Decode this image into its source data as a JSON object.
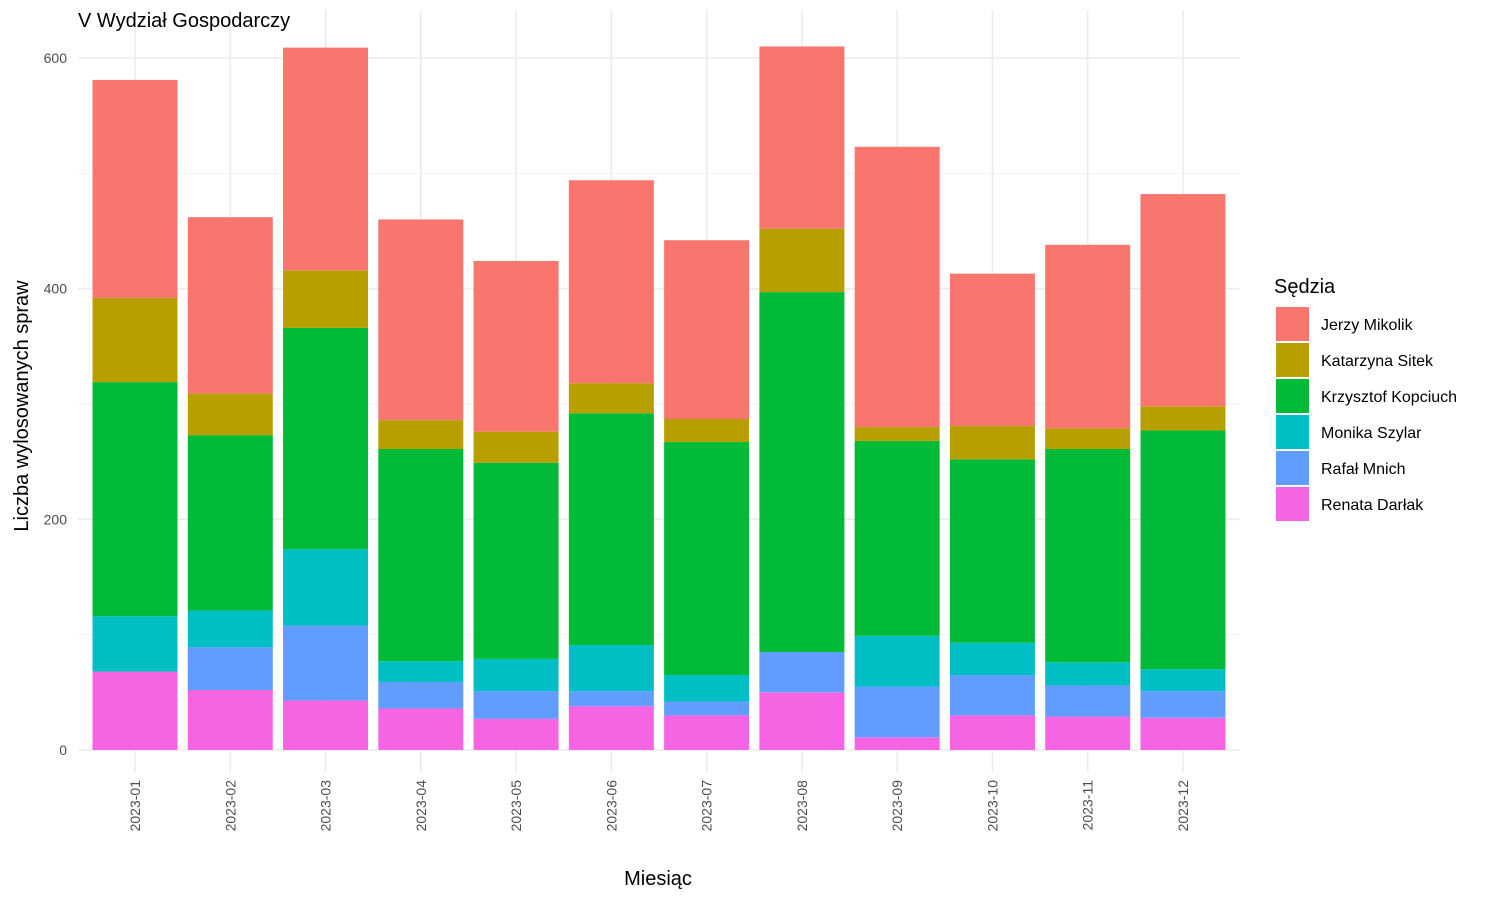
{
  "chart_data": {
    "type": "bar",
    "stacked": true,
    "title": "V Wydział Gospodarczy",
    "xlabel": "Miesiąc",
    "ylabel": "Liczba wylosowanych spraw",
    "ylim": [
      0,
      620
    ],
    "y_ticks": [
      0,
      200,
      400,
      600
    ],
    "grid": true,
    "legend_title": "Sędzia",
    "legend_position": "right",
    "categories": [
      "2023-01",
      "2023-02",
      "2023-03",
      "2023-04",
      "2023-05",
      "2023-06",
      "2023-07",
      "2023-08",
      "2023-09",
      "2023-10",
      "2023-11",
      "2023-12"
    ],
    "series": [
      {
        "name": "Renata Darłak",
        "color": "#F564E3",
        "values": [
          68,
          52,
          43,
          36,
          27,
          38,
          30,
          50,
          11,
          30,
          29,
          28
        ]
      },
      {
        "name": "Rafał Mnich",
        "color": "#619CFF",
        "values": [
          0,
          37,
          65,
          23,
          24,
          13,
          12,
          35,
          44,
          35,
          27,
          23
        ]
      },
      {
        "name": "Monika Szylar",
        "color": "#00BFC4",
        "values": [
          48,
          32,
          66,
          18,
          28,
          40,
          23,
          0,
          44,
          28,
          20,
          19
        ]
      },
      {
        "name": "Krzysztof Kopciuch",
        "color": "#00BA38",
        "values": [
          203,
          152,
          192,
          184,
          170,
          201,
          202,
          312,
          169,
          159,
          185,
          207
        ]
      },
      {
        "name": "Katarzyna Sitek",
        "color": "#B79F00",
        "values": [
          73,
          36,
          50,
          25,
          27,
          26,
          20,
          55,
          12,
          29,
          18,
          21
        ]
      },
      {
        "name": "Jerzy Mikolik",
        "color": "#F8766D",
        "values": [
          189,
          153,
          193,
          174,
          148,
          176,
          155,
          158,
          243,
          132,
          159,
          184
        ]
      }
    ],
    "legend_order": [
      "Jerzy Mikolik",
      "Katarzyna Sitek",
      "Krzysztof Kopciuch",
      "Monika Szylar",
      "Rafał Mnich",
      "Renata Darłak"
    ]
  }
}
